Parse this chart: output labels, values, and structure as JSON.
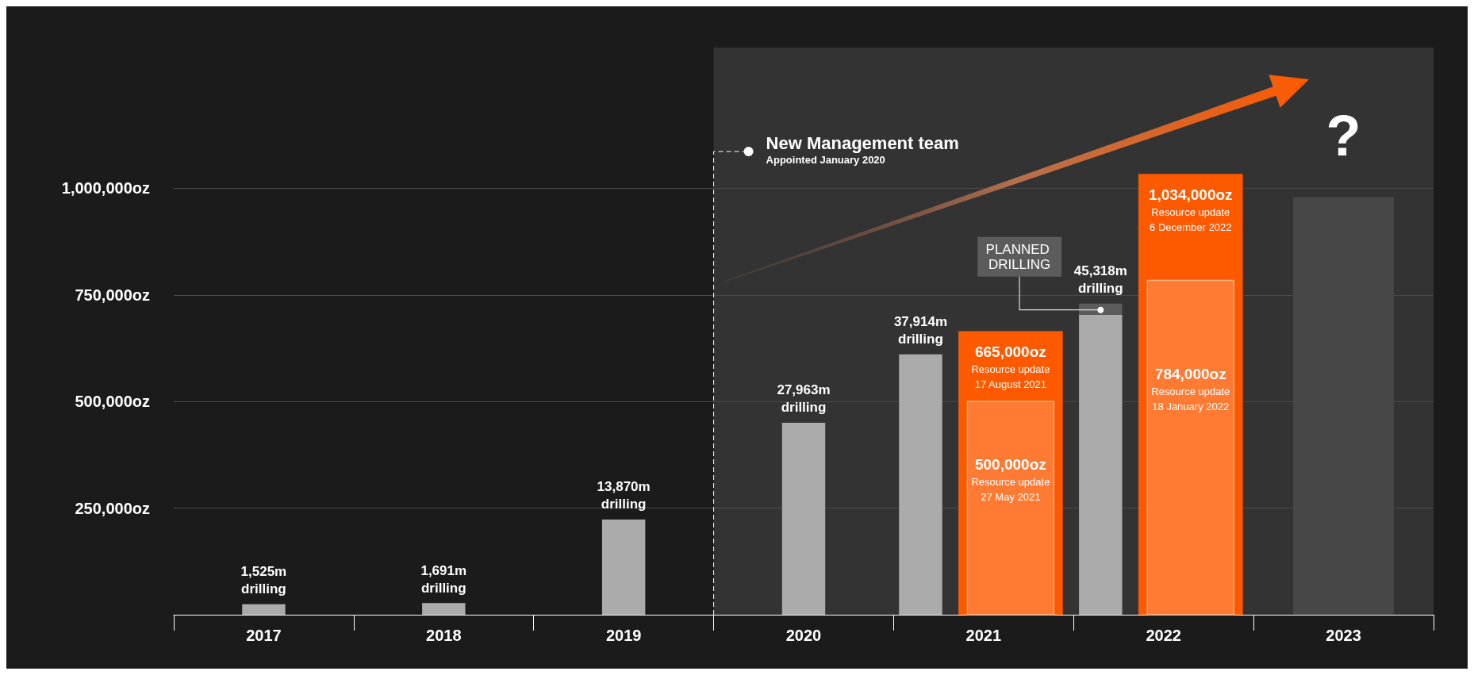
{
  "chart_data": {
    "type": "bar",
    "categories": [
      "2017",
      "2018",
      "2019",
      "2020",
      "2021",
      "2022",
      "2023"
    ],
    "series": [
      {
        "color": "#ababab",
        "axis": "y2",
        "values": [
          1525,
          1691,
          13870,
          27963,
          37914,
          45318,
          null
        ],
        "value_labels": [
          "1,525m\ndrilling",
          "1,691m\ndrilling",
          "13,870m\ndrilling",
          "27,963m\ndrilling",
          "37,914m\ndrilling",
          "45,318m\ndrilling",
          null
        ]
      },
      {
        "color": "#fd5a00",
        "values": [
          null,
          null,
          null,
          null,
          665000,
          1034000,
          null
        ],
        "value_labels": [
          null,
          null,
          null,
          null,
          "665,000oz\nResource update\n17 August 2021",
          "1,034,000oz\nResource update\n6 December 2022",
          null
        ]
      },
      {
        "color": "#ff7b33",
        "values": [
          null,
          null,
          null,
          null,
          500000,
          784000,
          null
        ],
        "value_labels": [
          null,
          null,
          null,
          null,
          "500,000oz\nResource update\n27 May 2021",
          "784,000oz\nResource update\n18 January 2022",
          null
        ]
      },
      {
        "color": "#474747",
        "values": [
          null,
          null,
          null,
          null,
          null,
          null,
          980000
        ],
        "value_labels": [
          null,
          null,
          null,
          null,
          null,
          null,
          "?"
        ]
      }
    ],
    "ylim": [
      0,
      1330000
    ],
    "yticks": [
      {
        "value": 250000,
        "label": "250,000oz"
      },
      {
        "value": 500000,
        "label": "500,000oz"
      },
      {
        "value": 750000,
        "label": "750,000oz"
      },
      {
        "value": 1000000,
        "label": "1,000,000oz"
      }
    ],
    "y2lim": [
      0,
      82600
    ],
    "tick_labels": "xy",
    "grid": "y",
    "bands": [
      {
        "axis": "x",
        "from": "2020",
        "to": "2023",
        "color": "#333333"
      }
    ],
    "ref_lines": [
      {
        "axis": "x",
        "value": "2020",
        "label": "New Management team",
        "line_style": "dashed",
        "color": "#ffffff"
      }
    ],
    "annotations": [
      "Appointed January 2020",
      "PLANNED DRILLING"
    ]
  }
}
